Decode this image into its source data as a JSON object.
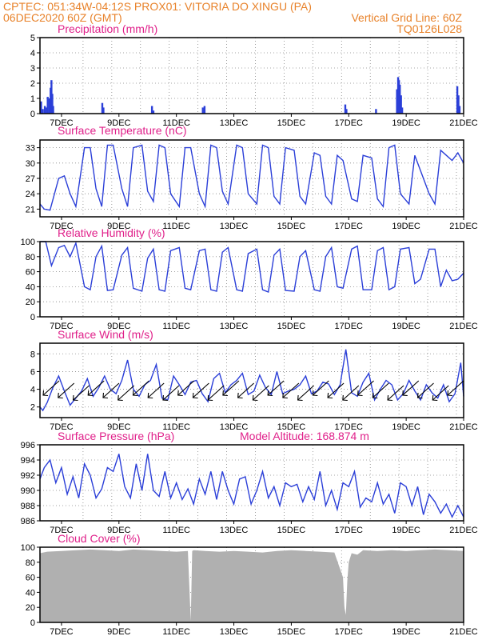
{
  "header": {
    "left_line1": "CPTEC:   051:34W-04:12S   PROX01: VITORIA DO XINGU (PA)",
    "left_line2": "06DEC2020 60Z (GMT)",
    "right_line2": "Vertical Grid Line: 60Z",
    "right_line3": "TQ0126L028"
  },
  "colors": {
    "header": "#e8822a",
    "title": "#e0208a",
    "series": "#2b3fd8",
    "cloud": "#b0b0b0"
  },
  "chart_data": [
    {
      "type": "bar",
      "title": "Precipitation (mm/h)",
      "xlabel": "",
      "ylabel": "",
      "x_ticks": [
        "7DEC",
        "9DEC",
        "11DEC",
        "13DEC",
        "15DEC",
        "17DEC",
        "19DEC",
        "21DEC"
      ],
      "x_range_days": [
        6.25,
        21.0
      ],
      "ylim": [
        0,
        5
      ],
      "y_ticks": [
        0,
        1,
        2,
        3,
        4,
        5
      ],
      "grid": true,
      "series": [
        {
          "x_days": [
            6.29,
            6.35,
            6.42,
            6.48,
            6.52,
            6.58,
            6.62,
            6.65,
            6.68,
            6.71,
            8.42,
            8.46,
            10.15,
            10.2,
            11.92,
            11.98,
            16.88,
            16.92,
            17.95,
            18.68,
            18.72,
            18.75,
            18.78,
            18.82,
            18.86,
            20.78,
            20.82,
            20.86
          ],
          "values": [
            0.8,
            0.3,
            0.5,
            0.4,
            1.1,
            1.0,
            1.7,
            2.2,
            1.3,
            0.5,
            0.7,
            0.4,
            0.5,
            0.2,
            0.4,
            0.5,
            0.6,
            0.3,
            0.3,
            1.6,
            2.4,
            2.2,
            1.9,
            1.2,
            0.4,
            1.8,
            1.2,
            0.5
          ]
        }
      ]
    },
    {
      "type": "line",
      "title": "Surface Temperature (nC)",
      "xlabel": "",
      "ylabel": "",
      "x_ticks": [
        "7DEC",
        "9DEC",
        "11DEC",
        "13DEC",
        "15DEC",
        "17DEC",
        "19DEC",
        "21DEC"
      ],
      "x_range_days": [
        6.25,
        21.0
      ],
      "ylim": [
        19.5,
        34.5
      ],
      "y_ticks": [
        21,
        24,
        27,
        30,
        33
      ],
      "grid": true,
      "series": [
        {
          "x_days": [
            6.25,
            6.4,
            6.6,
            6.9,
            7.1,
            7.3,
            7.5,
            7.8,
            8.0,
            8.2,
            8.4,
            8.6,
            8.8,
            9.1,
            9.3,
            9.5,
            9.8,
            10.0,
            10.2,
            10.4,
            10.6,
            10.8,
            11.1,
            11.3,
            11.5,
            11.8,
            12.0,
            12.2,
            12.4,
            12.6,
            12.8,
            13.1,
            13.3,
            13.5,
            13.8,
            14.0,
            14.2,
            14.4,
            14.6,
            14.8,
            15.1,
            15.3,
            15.5,
            15.8,
            16.0,
            16.2,
            16.4,
            16.6,
            16.8,
            17.1,
            17.3,
            17.5,
            17.8,
            18.0,
            18.2,
            18.4,
            18.6,
            18.8,
            19.1,
            19.3,
            19.5,
            19.8,
            20.0,
            20.2,
            20.4,
            20.6,
            20.8,
            21.0
          ],
          "values": [
            22.0,
            21.0,
            20.8,
            27.0,
            27.5,
            24.0,
            21.5,
            33.0,
            33.0,
            25.0,
            21.5,
            33.5,
            33.5,
            25.0,
            21.5,
            33.0,
            33.5,
            24.5,
            22.5,
            33.5,
            33.0,
            24.0,
            21.5,
            33.0,
            33.0,
            24.0,
            21.5,
            33.5,
            33.0,
            24.5,
            22.0,
            33.5,
            33.0,
            24.0,
            22.0,
            33.5,
            33.0,
            23.5,
            22.0,
            33.0,
            32.5,
            23.5,
            22.0,
            32.0,
            31.5,
            23.5,
            22.0,
            31.5,
            30.5,
            23.0,
            22.5,
            31.5,
            31.0,
            23.0,
            21.5,
            33.0,
            33.5,
            24.0,
            22.0,
            31.5,
            28.5,
            24.0,
            22.0,
            32.5,
            31.5,
            30.5,
            32.0,
            30.0
          ]
        }
      ]
    },
    {
      "type": "line",
      "title": "Relative Humidity (%)",
      "xlabel": "",
      "ylabel": "",
      "x_ticks": [
        "7DEC",
        "9DEC",
        "11DEC",
        "13DEC",
        "15DEC",
        "17DEC",
        "19DEC",
        "21DEC"
      ],
      "x_range_days": [
        6.25,
        21.0
      ],
      "ylim": [
        0,
        100
      ],
      "y_ticks": [
        0,
        20,
        40,
        60,
        80,
        100
      ],
      "grid": true,
      "series": [
        {
          "x_days": [
            6.25,
            6.45,
            6.65,
            6.9,
            7.1,
            7.3,
            7.5,
            7.8,
            8.0,
            8.2,
            8.4,
            8.6,
            8.8,
            9.1,
            9.3,
            9.5,
            9.8,
            10.0,
            10.2,
            10.4,
            10.6,
            10.8,
            11.1,
            11.3,
            11.5,
            11.8,
            12.0,
            12.2,
            12.4,
            12.6,
            12.8,
            13.1,
            13.3,
            13.5,
            13.8,
            14.0,
            14.2,
            14.4,
            14.6,
            14.8,
            15.1,
            15.3,
            15.5,
            15.8,
            16.0,
            16.2,
            16.4,
            16.6,
            16.8,
            17.1,
            17.3,
            17.5,
            17.8,
            18.0,
            18.2,
            18.4,
            18.6,
            18.8,
            19.1,
            19.3,
            19.5,
            19.8,
            20.0,
            20.2,
            20.4,
            20.6,
            20.8,
            21.0
          ],
          "values": [
            100,
            100,
            68,
            92,
            95,
            80,
            98,
            40,
            36,
            80,
            94,
            35,
            36,
            82,
            92,
            38,
            34,
            78,
            90,
            36,
            34,
            88,
            92,
            38,
            36,
            88,
            90,
            36,
            34,
            86,
            92,
            36,
            34,
            84,
            90,
            36,
            33,
            82,
            90,
            35,
            34,
            80,
            88,
            36,
            34,
            80,
            92,
            40,
            38,
            90,
            94,
            36,
            36,
            88,
            92,
            36,
            40,
            90,
            92,
            44,
            50,
            90,
            90,
            40,
            62,
            48,
            50,
            58
          ]
        }
      ]
    },
    {
      "type": "line",
      "title": "Surface Wind (m/s)",
      "xlabel": "",
      "ylabel": "",
      "x_ticks": [
        "7DEC",
        "9DEC",
        "11DEC",
        "13DEC",
        "15DEC",
        "17DEC",
        "19DEC",
        "21DEC"
      ],
      "x_range_days": [
        6.25,
        21.0
      ],
      "ylim": [
        0.8,
        9.2
      ],
      "y_ticks": [
        2,
        4,
        6,
        8
      ],
      "grid": true,
      "arrows": {
        "count": 28,
        "direction": "from NE, pointing SW"
      },
      "series": [
        {
          "x_days": [
            6.25,
            6.35,
            6.5,
            6.7,
            6.9,
            7.1,
            7.3,
            7.5,
            7.7,
            7.9,
            8.1,
            8.3,
            8.5,
            8.7,
            8.9,
            9.1,
            9.3,
            9.5,
            9.7,
            9.9,
            10.1,
            10.3,
            10.5,
            10.7,
            10.9,
            11.1,
            11.3,
            11.5,
            11.7,
            11.9,
            12.1,
            12.3,
            12.5,
            12.7,
            12.9,
            13.1,
            13.3,
            13.5,
            13.7,
            13.9,
            14.1,
            14.3,
            14.5,
            14.7,
            14.9,
            15.1,
            15.3,
            15.5,
            15.7,
            15.9,
            16.1,
            16.3,
            16.5,
            16.7,
            16.9,
            17.1,
            17.3,
            17.5,
            17.7,
            17.9,
            18.1,
            18.3,
            18.5,
            18.7,
            18.9,
            19.1,
            19.3,
            19.5,
            19.7,
            19.9,
            20.1,
            20.3,
            20.5,
            20.7,
            20.9,
            21.0
          ],
          "values": [
            2.0,
            1.6,
            2.5,
            4.2,
            5.5,
            3.8,
            2.2,
            3.0,
            3.8,
            5.2,
            3.2,
            4.2,
            5.5,
            4.0,
            3.5,
            5.0,
            7.3,
            4.0,
            3.2,
            4.5,
            5.0,
            6.8,
            3.0,
            2.8,
            5.5,
            4.5,
            3.4,
            4.8,
            5.0,
            3.5,
            2.6,
            5.2,
            5.8,
            3.6,
            4.5,
            5.0,
            5.8,
            3.4,
            3.8,
            5.6,
            4.2,
            3.4,
            6.0,
            3.5,
            3.8,
            4.0,
            4.5,
            5.5,
            3.5,
            3.8,
            4.8,
            4.6,
            3.4,
            4.5,
            8.5,
            3.6,
            3.2,
            4.8,
            5.8,
            2.8,
            4.0,
            5.0,
            4.5,
            2.8,
            3.5,
            5.0,
            3.8,
            2.8,
            4.5,
            3.6,
            3.0,
            4.5,
            2.6,
            3.5,
            7.0,
            3.2
          ]
        }
      ]
    },
    {
      "type": "line",
      "title": "Surface Pressure (hPa)",
      "annotation": "Model Altitude: 168.874 m",
      "xlabel": "",
      "ylabel": "",
      "x_ticks": [
        "7DEC",
        "9DEC",
        "11DEC",
        "13DEC",
        "15DEC",
        "17DEC",
        "19DEC",
        "21DEC"
      ],
      "x_range_days": [
        6.25,
        21.0
      ],
      "ylim": [
        986,
        996
      ],
      "y_ticks": [
        986,
        988,
        990,
        992,
        994,
        996
      ],
      "grid": true,
      "series": [
        {
          "x_days": [
            6.25,
            6.4,
            6.6,
            6.8,
            7.0,
            7.2,
            7.4,
            7.6,
            7.8,
            8.0,
            8.2,
            8.4,
            8.6,
            8.8,
            9.0,
            9.2,
            9.4,
            9.6,
            9.8,
            10.0,
            10.2,
            10.4,
            10.6,
            10.8,
            11.0,
            11.2,
            11.4,
            11.6,
            11.8,
            12.0,
            12.2,
            12.4,
            12.6,
            12.8,
            13.0,
            13.2,
            13.4,
            13.6,
            13.8,
            14.0,
            14.2,
            14.4,
            14.6,
            14.8,
            15.0,
            15.2,
            15.4,
            15.6,
            15.8,
            16.0,
            16.2,
            16.4,
            16.6,
            16.8,
            17.0,
            17.2,
            17.4,
            17.6,
            17.8,
            18.0,
            18.2,
            18.4,
            18.6,
            18.8,
            19.0,
            19.2,
            19.4,
            19.6,
            19.8,
            20.0,
            20.2,
            20.4,
            20.6,
            20.8,
            21.0
          ],
          "values": [
            991.5,
            993.0,
            994.0,
            991.0,
            993.0,
            989.5,
            991.8,
            989.0,
            993.5,
            992.0,
            989.0,
            990.2,
            993.0,
            992.5,
            994.8,
            990.5,
            989.0,
            993.5,
            990.0,
            994.8,
            990.0,
            989.2,
            992.5,
            989.0,
            991.0,
            988.8,
            990.2,
            988.2,
            991.5,
            989.5,
            992.5,
            988.8,
            992.5,
            990.0,
            988.2,
            991.5,
            991.8,
            988.2,
            990.0,
            992.5,
            989.0,
            990.5,
            988.0,
            991.0,
            990.5,
            990.8,
            988.5,
            990.5,
            988.8,
            992.5,
            988.0,
            990.0,
            987.5,
            991.0,
            990.5,
            992.5,
            987.8,
            989.0,
            988.5,
            991.0,
            988.2,
            989.5,
            987.0,
            991.0,
            990.5,
            988.0,
            990.5,
            986.8,
            989.5,
            988.5,
            987.0,
            988.2,
            986.5,
            988.0,
            986.5
          ]
        }
      ]
    },
    {
      "type": "area",
      "title": "Cloud Cover (%)",
      "xlabel": "",
      "ylabel": "",
      "x_ticks": [
        "7DEC",
        "9DEC",
        "11DEC",
        "13DEC",
        "15DEC",
        "17DEC",
        "19DEC",
        "21DEC"
      ],
      "x_range_days": [
        6.25,
        21.0
      ],
      "ylim": [
        0,
        100
      ],
      "y_ticks": [
        0,
        20,
        40,
        60,
        80,
        100
      ],
      "grid": true,
      "series": [
        {
          "x_days": [
            6.25,
            6.5,
            7.0,
            7.5,
            8.0,
            8.5,
            9.0,
            9.5,
            10.0,
            10.5,
            11.0,
            11.4,
            11.5,
            11.55,
            11.6,
            12.0,
            12.5,
            13.0,
            13.5,
            14.0,
            14.5,
            15.0,
            15.5,
            16.0,
            16.5,
            16.8,
            16.85,
            16.9,
            16.95,
            17.0,
            17.1,
            17.3,
            17.5,
            18.0,
            18.5,
            19.0,
            19.5,
            20.0,
            20.5,
            21.0
          ],
          "values": [
            92,
            94,
            95,
            96,
            97,
            96,
            95,
            97,
            96,
            95,
            94,
            95,
            2,
            95,
            96,
            95,
            94,
            95,
            94,
            93,
            95,
            96,
            95,
            94,
            93,
            60,
            20,
            10,
            55,
            80,
            92,
            90,
            96,
            95,
            96,
            95,
            96,
            97,
            96,
            95
          ]
        }
      ]
    }
  ]
}
